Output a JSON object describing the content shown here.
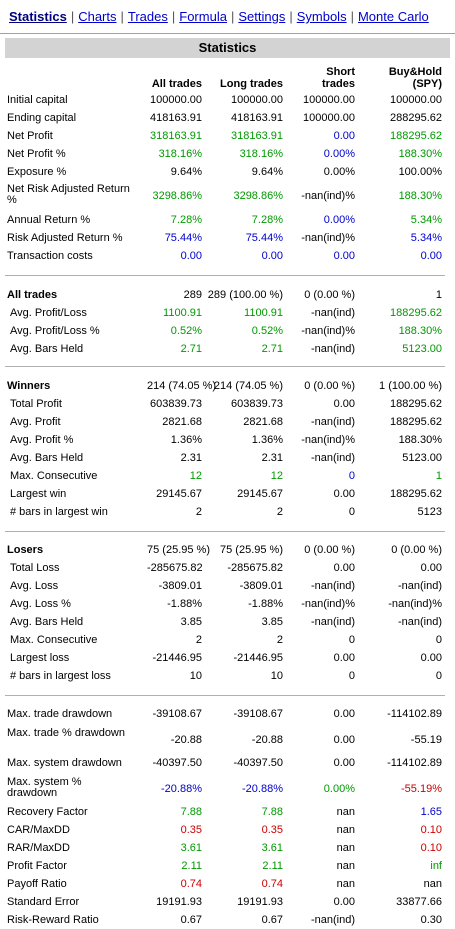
{
  "nav": {
    "tabs": [
      "Statistics",
      "Charts",
      "Trades",
      "Formula",
      "Settings",
      "Symbols",
      "Monte Carlo"
    ],
    "active": "Statistics"
  },
  "header": {
    "title": "Statistics",
    "columns": [
      "All trades",
      "Long trades",
      "Short trades",
      "Buy&Hold (SPY)"
    ]
  },
  "colors": {
    "blue": "#0000cc",
    "green": "#009900",
    "red": "#cc0000",
    "header_bg": "#d3d3d3"
  },
  "sections": [
    {
      "rows": [
        {
          "label": "Initial capital",
          "values": [
            "100000.00",
            "100000.00",
            "100000.00",
            "100000.00"
          ],
          "colors": [
            "",
            "",
            "",
            ""
          ]
        },
        {
          "label": "Ending capital",
          "values": [
            "418163.91",
            "418163.91",
            "100000.00",
            "288295.62"
          ],
          "colors": [
            "",
            "",
            "",
            ""
          ]
        },
        {
          "label": "Net Profit",
          "values": [
            "318163.91",
            "318163.91",
            "0.00",
            "188295.62"
          ],
          "colors": [
            "green",
            "green",
            "blue",
            "green"
          ]
        },
        {
          "label": "Net Profit %",
          "values": [
            "318.16%",
            "318.16%",
            "0.00%",
            "188.30%"
          ],
          "colors": [
            "green",
            "green",
            "blue",
            "green"
          ]
        },
        {
          "label": "Exposure %",
          "values": [
            "9.64%",
            "9.64%",
            "0.00%",
            "100.00%"
          ],
          "colors": [
            "",
            "",
            "",
            ""
          ]
        },
        {
          "label": "Net Risk Adjusted Return %",
          "two": true,
          "values": [
            "3298.86%",
            "3298.86%",
            "-nan(ind)%",
            "188.30%"
          ],
          "colors": [
            "green",
            "green",
            "",
            "green"
          ]
        },
        {
          "label": "Annual Return %",
          "values": [
            "7.28%",
            "7.28%",
            "0.00%",
            "5.34%"
          ],
          "colors": [
            "green",
            "green",
            "blue",
            "green"
          ]
        },
        {
          "label": "Risk Adjusted Return %",
          "values": [
            "75.44%",
            "75.44%",
            "-nan(ind)%",
            "5.34%"
          ],
          "colors": [
            "blue",
            "blue",
            "",
            "blue"
          ]
        },
        {
          "label": "Transaction costs",
          "values": [
            "0.00",
            "0.00",
            "0.00",
            "0.00"
          ],
          "colors": [
            "blue",
            "blue",
            "blue",
            "blue"
          ]
        }
      ]
    },
    {
      "rows": [
        {
          "label": "All trades",
          "bold": true,
          "values": [
            "289",
            "289 (100.00 %)",
            "0 (0.00 %)",
            "1"
          ],
          "colors": [
            "",
            "",
            "",
            ""
          ]
        },
        {
          "label": "Avg. Profit/Loss",
          "sub": true,
          "values": [
            "1100.91",
            "1100.91",
            "-nan(ind)",
            "188295.62"
          ],
          "colors": [
            "green",
            "green",
            "",
            "green"
          ]
        },
        {
          "label": "Avg. Profit/Loss %",
          "sub": true,
          "values": [
            "0.52%",
            "0.52%",
            "-nan(ind)%",
            "188.30%"
          ],
          "colors": [
            "green",
            "green",
            "",
            "green"
          ]
        },
        {
          "label": "Avg. Bars Held",
          "sub": true,
          "values": [
            "2.71",
            "2.71",
            "-nan(ind)",
            "5123.00"
          ],
          "colors": [
            "green",
            "green",
            "",
            "green"
          ]
        }
      ]
    },
    {
      "rows": [
        {
          "label": "Winners",
          "bold": true,
          "values": [
            "214 (74.05 %)",
            "214 (74.05 %)",
            "0 (0.00 %)",
            "1 (100.00 %)"
          ],
          "colors": [
            "",
            "",
            "",
            ""
          ]
        },
        {
          "label": "Total Profit",
          "sub": true,
          "values": [
            "603839.73",
            "603839.73",
            "0.00",
            "188295.62"
          ],
          "colors": [
            "",
            "",
            "",
            ""
          ]
        },
        {
          "label": "Avg. Profit",
          "sub": true,
          "values": [
            "2821.68",
            "2821.68",
            "-nan(ind)",
            "188295.62"
          ],
          "colors": [
            "",
            "",
            "",
            ""
          ]
        },
        {
          "label": "Avg. Profit %",
          "sub": true,
          "values": [
            "1.36%",
            "1.36%",
            "-nan(ind)%",
            "188.30%"
          ],
          "colors": [
            "",
            "",
            "",
            ""
          ]
        },
        {
          "label": "Avg. Bars Held",
          "sub": true,
          "values": [
            "2.31",
            "2.31",
            "-nan(ind)",
            "5123.00"
          ],
          "colors": [
            "",
            "",
            "",
            ""
          ]
        },
        {
          "label": "Max. Consecutive",
          "sub": true,
          "values": [
            "12",
            "12",
            "0",
            "1"
          ],
          "colors": [
            "green",
            "green",
            "blue",
            "green"
          ]
        },
        {
          "label": "Largest win",
          "sub": true,
          "values": [
            "29145.67",
            "29145.67",
            "0.00",
            "188295.62"
          ],
          "colors": [
            "",
            "",
            "",
            ""
          ]
        },
        {
          "label": "# bars in largest win",
          "sub": true,
          "values": [
            "2",
            "2",
            "0",
            "5123"
          ],
          "colors": [
            "",
            "",
            "",
            ""
          ]
        }
      ]
    },
    {
      "rows": [
        {
          "label": "Losers",
          "bold": true,
          "values": [
            "75 (25.95 %)",
            "75 (25.95 %)",
            "0 (0.00 %)",
            "0 (0.00 %)"
          ],
          "colors": [
            "",
            "",
            "",
            ""
          ]
        },
        {
          "label": "Total Loss",
          "sub": true,
          "values": [
            "-285675.82",
            "-285675.82",
            "0.00",
            "0.00"
          ],
          "colors": [
            "",
            "",
            "",
            ""
          ]
        },
        {
          "label": "Avg. Loss",
          "sub": true,
          "values": [
            "-3809.01",
            "-3809.01",
            "-nan(ind)",
            "-nan(ind)"
          ],
          "colors": [
            "",
            "",
            "",
            ""
          ]
        },
        {
          "label": "Avg. Loss %",
          "sub": true,
          "values": [
            "-1.88%",
            "-1.88%",
            "-nan(ind)%",
            "-nan(ind)%"
          ],
          "colors": [
            "",
            "",
            "",
            ""
          ]
        },
        {
          "label": "Avg. Bars Held",
          "sub": true,
          "values": [
            "3.85",
            "3.85",
            "-nan(ind)",
            "-nan(ind)"
          ],
          "colors": [
            "",
            "",
            "",
            ""
          ]
        },
        {
          "label": "Max. Consecutive",
          "sub": true,
          "values": [
            "2",
            "2",
            "0",
            "0"
          ],
          "colors": [
            "",
            "",
            "",
            ""
          ]
        },
        {
          "label": "Largest loss",
          "sub": true,
          "values": [
            "-21446.95",
            "-21446.95",
            "0.00",
            "0.00"
          ],
          "colors": [
            "",
            "",
            "",
            ""
          ]
        },
        {
          "label": "# bars in largest loss",
          "sub": true,
          "values": [
            "10",
            "10",
            "0",
            "0"
          ],
          "colors": [
            "",
            "",
            "",
            ""
          ]
        }
      ]
    },
    {
      "rows": [
        {
          "label": "Max. trade drawdown",
          "values": [
            "-39108.67",
            "-39108.67",
            "0.00",
            "-114102.89"
          ],
          "colors": [
            "",
            "",
            "",
            ""
          ]
        },
        {
          "label": "Max. trade % drawdown",
          "two": true,
          "values": [
            "-20.88",
            "-20.88",
            "0.00",
            "-55.19"
          ],
          "colors": [
            "",
            "",
            "",
            ""
          ]
        },
        {
          "label": "Max. system drawdown",
          "values": [
            "-40397.50",
            "-40397.50",
            "0.00",
            "-114102.89"
          ],
          "colors": [
            "",
            "",
            "",
            ""
          ]
        },
        {
          "label": "Max. system % drawdown",
          "two": true,
          "values": [
            "-20.88%",
            "-20.88%",
            "0.00%",
            "-55.19%"
          ],
          "colors": [
            "blue",
            "blue",
            "green",
            "red"
          ]
        },
        {
          "label": "Recovery Factor",
          "values": [
            "7.88",
            "7.88",
            "nan",
            "1.65"
          ],
          "colors": [
            "green",
            "green",
            "",
            "blue"
          ]
        },
        {
          "label": "CAR/MaxDD",
          "values": [
            "0.35",
            "0.35",
            "nan",
            "0.10"
          ],
          "colors": [
            "red",
            "red",
            "",
            "red"
          ]
        },
        {
          "label": "RAR/MaxDD",
          "values": [
            "3.61",
            "3.61",
            "nan",
            "0.10"
          ],
          "colors": [
            "green",
            "green",
            "",
            "red"
          ]
        },
        {
          "label": "Profit Factor",
          "values": [
            "2.11",
            "2.11",
            "nan",
            "inf"
          ],
          "colors": [
            "green",
            "green",
            "",
            "green"
          ]
        },
        {
          "label": "Payoff Ratio",
          "values": [
            "0.74",
            "0.74",
            "nan",
            "nan"
          ],
          "colors": [
            "red",
            "red",
            "",
            ""
          ]
        },
        {
          "label": "Standard Error",
          "values": [
            "19191.93",
            "19191.93",
            "0.00",
            "33877.66"
          ],
          "colors": [
            "",
            "",
            "",
            ""
          ]
        },
        {
          "label": "Risk-Reward Ratio",
          "values": [
            "0.67",
            "0.67",
            "-nan(ind)",
            "0.30"
          ],
          "colors": [
            "",
            "",
            "",
            ""
          ]
        }
      ]
    }
  ]
}
